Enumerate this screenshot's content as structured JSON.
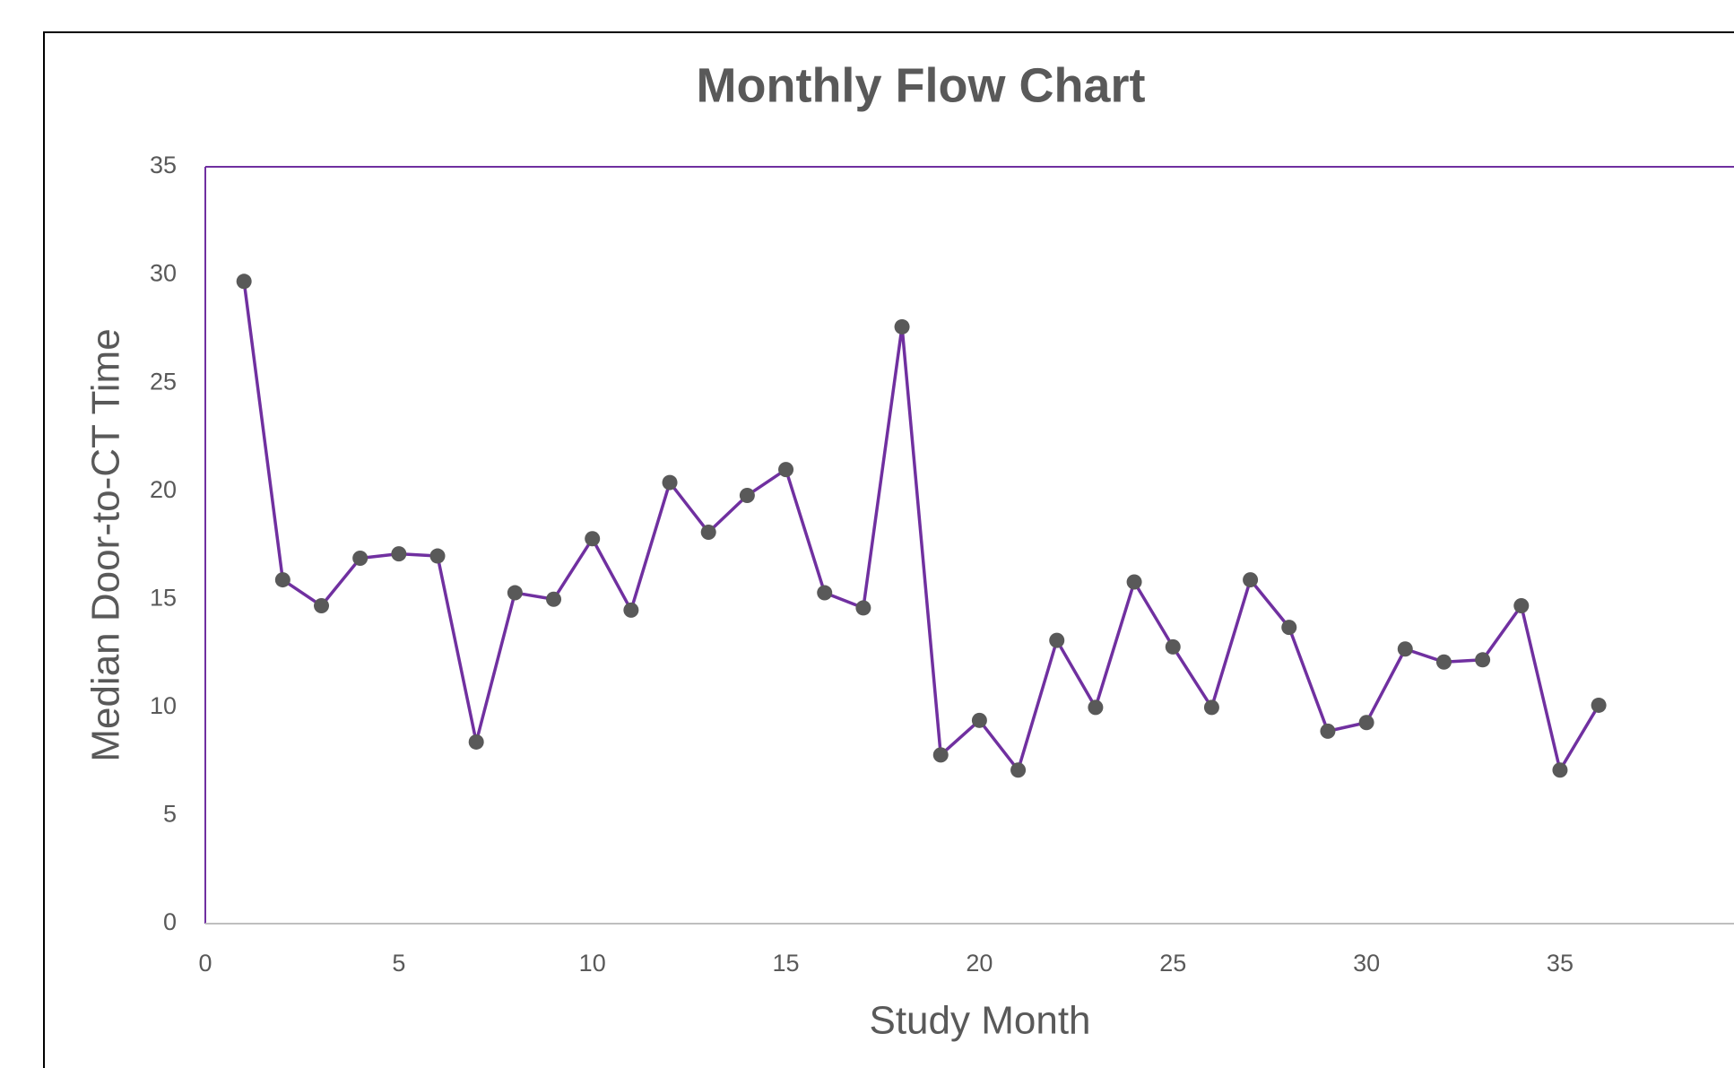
{
  "chart_data": {
    "type": "line",
    "title": "Monthly Flow Chart",
    "x_label": "Study Month",
    "y_label": "Median Door-to-CT Time",
    "x": [
      1,
      2,
      3,
      4,
      5,
      6,
      7,
      8,
      9,
      10,
      11,
      12,
      13,
      14,
      15,
      16,
      17,
      18,
      19,
      20,
      21,
      22,
      23,
      24,
      25,
      26,
      27,
      28,
      29,
      30,
      31,
      32,
      33,
      34,
      35,
      36
    ],
    "series": [
      {
        "color": "#7030a0",
        "marker_color": "#595959",
        "values": [
          29.7,
          15.9,
          14.7,
          16.9,
          17.1,
          17.0,
          8.4,
          15.3,
          15.0,
          17.8,
          14.5,
          20.4,
          18.1,
          19.8,
          21.0,
          15.3,
          14.6,
          27.6,
          7.8,
          9.4,
          7.1,
          13.1,
          10.0,
          15.8,
          12.8,
          10.0,
          15.9,
          13.7,
          8.9,
          9.3,
          12.7,
          12.1,
          12.2,
          14.7,
          7.1,
          10.1
        ]
      }
    ],
    "xlim": [
      0,
      40
    ],
    "xticks": [
      0,
      5,
      10,
      15,
      20,
      25,
      30,
      35
    ],
    "ylim": [
      0,
      35
    ],
    "yticks": [
      0,
      5,
      10,
      15,
      20,
      25,
      30,
      35
    ]
  }
}
